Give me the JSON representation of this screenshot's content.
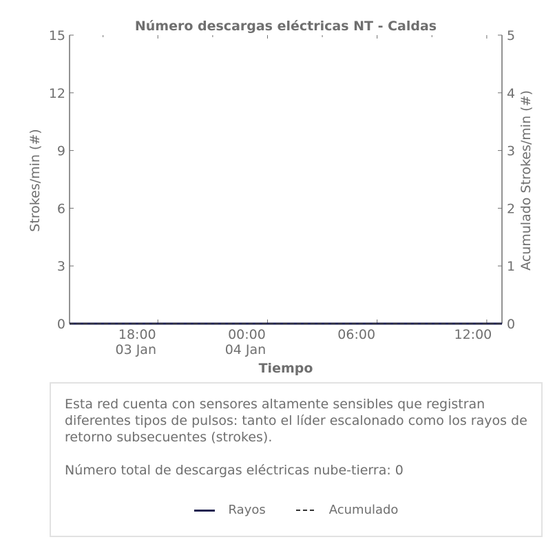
{
  "chart_data": {
    "type": "line",
    "title": "Número descargas eléctricas NT - Caldas",
    "xlabel": "Tiempo",
    "ylabel": "Strokes/min (#)",
    "ylabel_right": "Acumulado Strokes/min (#)",
    "ylim": [
      0,
      15
    ],
    "ylim_right": [
      0,
      5
    ],
    "yticks": [
      0,
      3,
      6,
      9,
      12,
      15
    ],
    "yticks_right": [
      0,
      1,
      2,
      3,
      4,
      5
    ],
    "xlim": [
      "2015-01-03T13:10",
      "2015-01-04T12:50"
    ],
    "xticks": [
      {
        "time": "2015-01-03T18:00",
        "label": "18:00",
        "sublabel": "03 Jan"
      },
      {
        "time": "2015-01-04T00:00",
        "label": "00:00",
        "sublabel": "04 Jan"
      },
      {
        "time": "2015-01-04T06:00",
        "label": "06:00",
        "sublabel": ""
      },
      {
        "time": "2015-01-04T12:00",
        "label": "12:00",
        "sublabel": ""
      }
    ],
    "series": [
      {
        "name": "Rayos",
        "axis": "left",
        "style": "solid",
        "color": "#1f2150",
        "points": [
          [
            "2015-01-03T13:10",
            0
          ],
          [
            "2015-01-04T12:50",
            0
          ]
        ]
      },
      {
        "name": "Acumulado",
        "axis": "right",
        "style": "dashed",
        "color": "#333333",
        "points": [
          [
            "2015-01-03T13:10",
            0
          ],
          [
            "2015-01-04T12:50",
            0
          ]
        ]
      }
    ],
    "grid": false,
    "legend": "bottom-center"
  },
  "info": {
    "description": "Esta red cuenta con sensores altamente sensibles que registran diferentes tipos de pulsos: tanto el líder escalonado como los rayos de retorno subsecuentes (strokes).",
    "total": "Número total de descargas eléctricas nube-tierra: 0"
  },
  "legend": {
    "rayos": "Rayos",
    "acumulado": "Acumulado"
  }
}
